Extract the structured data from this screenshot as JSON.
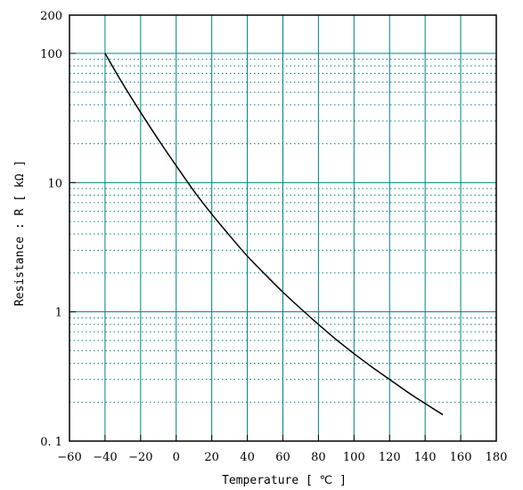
{
  "chart_data": {
    "type": "line",
    "title": "",
    "xlabel": "Temperature  [ ℃  ]",
    "ylabel": "Resistance  :  R  [ kΩ  ]",
    "xlim": [
      -60,
      180
    ],
    "ylim": [
      0.1,
      200
    ],
    "yscale": "log",
    "grid": true,
    "x_ticks": [
      -60,
      -40,
      -20,
      0,
      20,
      40,
      60,
      80,
      100,
      120,
      140,
      160,
      180
    ],
    "x_tick_labels": [
      "−60",
      "−40",
      "−20",
      "0",
      "20",
      "40",
      "60",
      "80",
      "100",
      "120",
      "140",
      "160",
      "180"
    ],
    "y_ticks": [
      0.1,
      1,
      10,
      100,
      200
    ],
    "y_tick_labels": [
      "0. 1",
      "1",
      "10",
      "100",
      "200"
    ],
    "series": [
      {
        "color": "#000000",
        "x": [
          -40,
          -30,
          -20,
          -10,
          0,
          10,
          20,
          30,
          40,
          50,
          60,
          70,
          80,
          90,
          100,
          110,
          120,
          130,
          140,
          150
        ],
        "y": [
          100,
          58,
          35,
          21.5,
          13.5,
          8.6,
          5.7,
          3.9,
          2.7,
          1.95,
          1.42,
          1.06,
          0.8,
          0.61,
          0.475,
          0.375,
          0.3,
          0.24,
          0.195,
          0.16
        ]
      }
    ],
    "grid_colors": {
      "major": "#008080",
      "minor": "#008080",
      "frame": "#000000"
    }
  }
}
